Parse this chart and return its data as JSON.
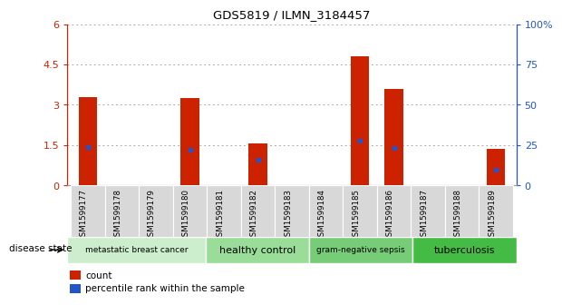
{
  "title": "GDS5819 / ILMN_3184457",
  "samples": [
    "GSM1599177",
    "GSM1599178",
    "GSM1599179",
    "GSM1599180",
    "GSM1599181",
    "GSM1599182",
    "GSM1599183",
    "GSM1599184",
    "GSM1599185",
    "GSM1599186",
    "GSM1599187",
    "GSM1599188",
    "GSM1599189"
  ],
  "count_values": [
    3.3,
    0,
    0,
    3.25,
    0,
    1.55,
    0,
    0,
    4.8,
    3.6,
    0,
    0,
    1.35
  ],
  "percentile_values": [
    24,
    0,
    0,
    22,
    0,
    16,
    0,
    0,
    28,
    23,
    0,
    0,
    10
  ],
  "ylim_left": [
    0,
    6
  ],
  "ylim_right": [
    0,
    100
  ],
  "yticks_left": [
    0,
    1.5,
    3.0,
    4.5,
    6
  ],
  "ytick_labels_left": [
    "0",
    "1.5",
    "3",
    "4.5",
    "6"
  ],
  "yticks_right": [
    0,
    25,
    50,
    75,
    100
  ],
  "ytick_labels_right": [
    "0",
    "25",
    "50",
    "75",
    "100%"
  ],
  "bar_color": "#cc2200",
  "percentile_color": "#2255cc",
  "groups": [
    {
      "label": "metastatic breast cancer",
      "start": 0,
      "end": 4,
      "color": "#cceecc"
    },
    {
      "label": "healthy control",
      "start": 4,
      "end": 7,
      "color": "#99dd99"
    },
    {
      "label": "gram-negative sepsis",
      "start": 7,
      "end": 10,
      "color": "#77cc77"
    },
    {
      "label": "tuberculosis",
      "start": 10,
      "end": 13,
      "color": "#44bb44"
    }
  ],
  "disease_state_label": "disease state",
  "legend_count_label": "count",
  "legend_percentile_label": "percentile rank within the sample",
  "grid_color": "#aaaaaa",
  "background_color": "#ffffff",
  "tick_bg_color": "#d8d8d8",
  "bar_width": 0.55
}
